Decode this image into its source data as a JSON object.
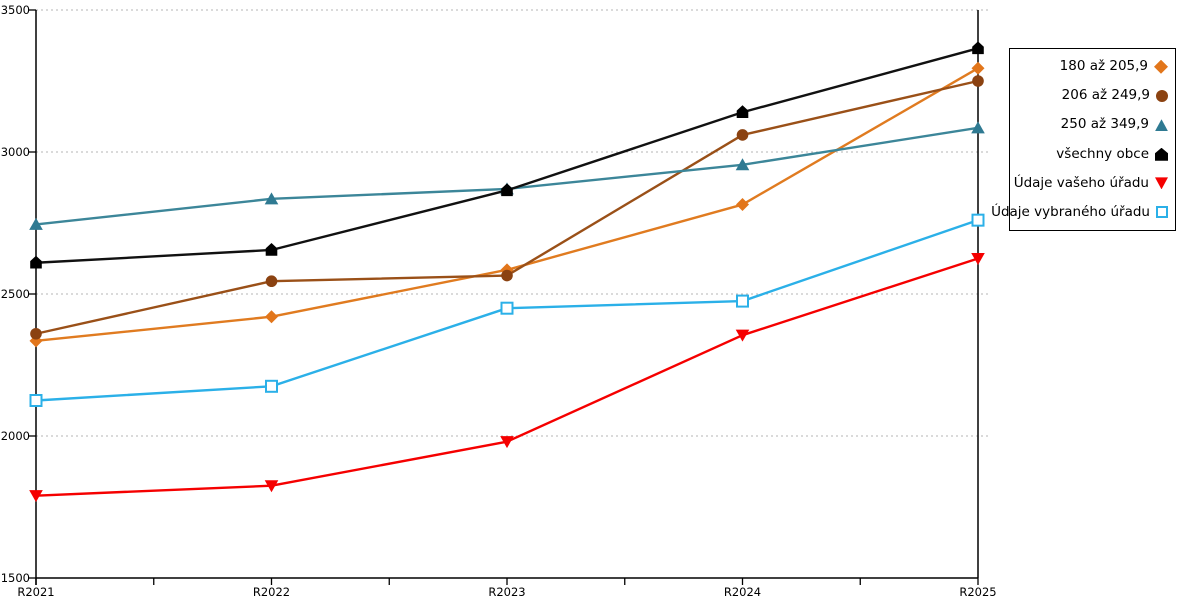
{
  "chart_data": {
    "type": "line",
    "title": "",
    "xlabel": "",
    "ylabel": "",
    "x_categories": [
      "R2021",
      "R2022",
      "R2023",
      "R2024",
      "R2025"
    ],
    "ylim": [
      1500,
      3500
    ],
    "ytick_step": 500,
    "ytick_labels": [
      "1500",
      "2000",
      "2500",
      "3000",
      "3500"
    ],
    "grid": "horizontal dashed gridlines at each y tick",
    "legend_position": "outside-right",
    "axis_color": "#000000",
    "grid_color": "#b5b5b5",
    "series": [
      {
        "name": "180 až 205,9",
        "marker": "diamond",
        "color": "#e2761b",
        "line_color": "#e07b20",
        "values": [
          2335,
          2420,
          2585,
          2815,
          3295
        ]
      },
      {
        "name": "206 až 249,9",
        "marker": "circle",
        "color": "#8b4211",
        "line_color": "#9a5018",
        "values": [
          2360,
          2545,
          2565,
          3060,
          3250
        ]
      },
      {
        "name": "250 až 349,9",
        "marker": "triangle-up",
        "color": "#2f7a92",
        "line_color": "#3c8699",
        "values": [
          2745,
          2835,
          2870,
          2955,
          3085
        ]
      },
      {
        "name": "všechny obce",
        "marker": "house",
        "color": "#000000",
        "line_color": "#111111",
        "values": [
          2610,
          2655,
          2865,
          3140,
          3365
        ]
      },
      {
        "name": "Údaje vašeho úřadu",
        "marker": "triangle-down",
        "color": "#f50000",
        "line_color": "#f50000",
        "values": [
          1790,
          1825,
          1980,
          2355,
          2625
        ]
      },
      {
        "name": "Údaje vybraného úřadu",
        "marker": "square-open",
        "color": "#2bb0e8",
        "line_color": "#2bb0e8",
        "values": [
          2125,
          2175,
          2450,
          2475,
          2760
        ]
      }
    ]
  }
}
